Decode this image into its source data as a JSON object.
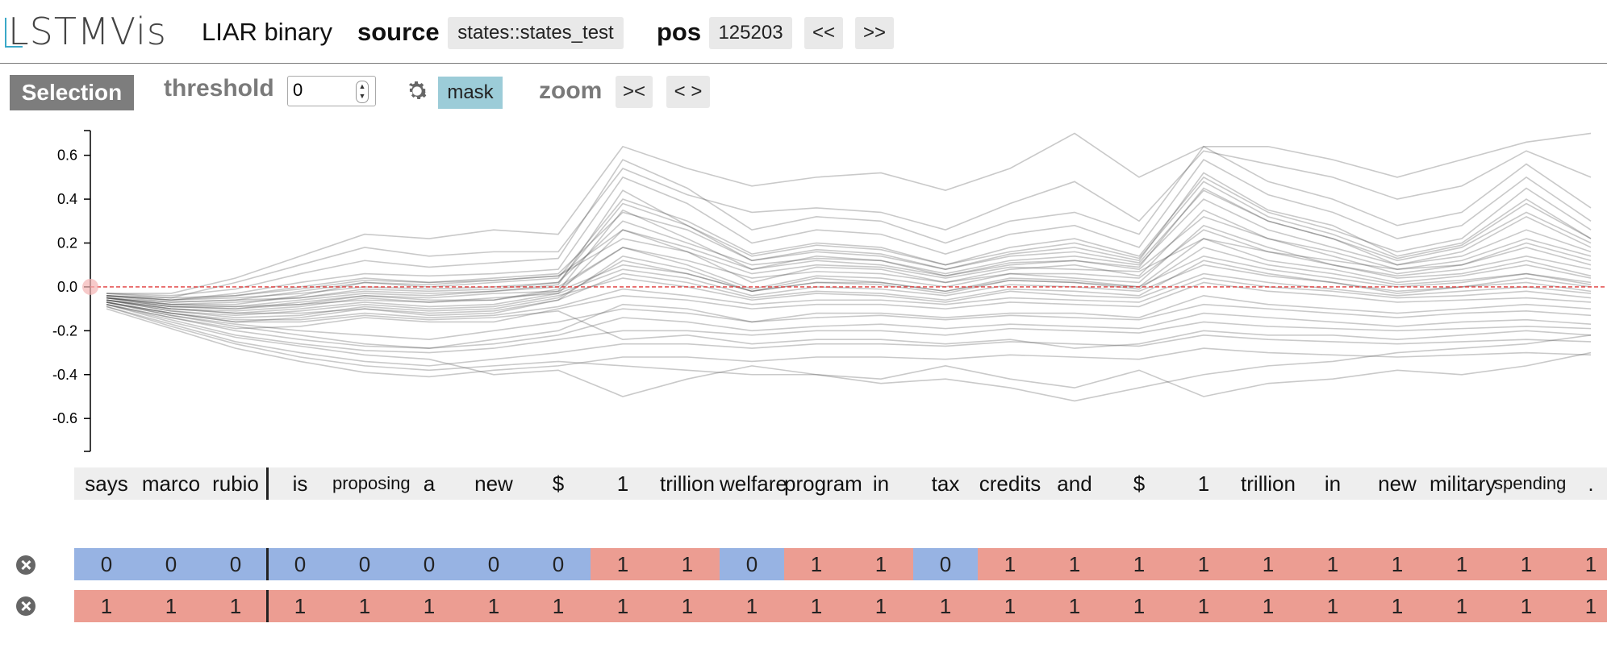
{
  "header": {
    "logo": "LSTMVis",
    "title": "LIAR binary",
    "source_label": "source",
    "source_value": "states::states_test",
    "pos_label": "pos",
    "pos_value": "125203",
    "prev_label": "<<",
    "next_label": ">>"
  },
  "toolbar": {
    "selection_label": "Selection",
    "threshold_label": "threshold",
    "threshold_value": "0",
    "mask_label": "mask",
    "zoom_label": "zoom",
    "zoom_in_label": "><",
    "zoom_out_label": "< >",
    "settings_icon": "gear-icon"
  },
  "chart_data": {
    "type": "line",
    "ylim": [
      -0.75,
      0.72
    ],
    "yticks": [
      "0.6",
      "0.4",
      "0.2",
      "0.0",
      "-0.2",
      "-0.4",
      "-0.6"
    ],
    "threshold": 0.0,
    "x": [
      "says",
      "marco",
      "rubio",
      "is",
      "proposing",
      "a",
      "new",
      "$",
      "1",
      "trillion",
      "welfare",
      "program",
      "in",
      "tax",
      "credits",
      "and",
      "$",
      "1",
      "trillion",
      "in",
      "new",
      "military",
      "spending",
      "."
    ],
    "series": [
      {
        "values": [
          -0.05,
          -0.08,
          -0.09,
          -0.08,
          -0.04,
          -0.06,
          -0.06,
          -0.01,
          0.18,
          0.1,
          -0.01,
          0.05,
          0.04,
          0.0,
          0.06,
          0.04,
          0.02,
          0.28,
          0.18,
          0.1,
          0.04,
          0.06,
          0.12,
          0.05
        ]
      },
      {
        "values": [
          -0.06,
          -0.1,
          -0.12,
          -0.1,
          -0.07,
          -0.09,
          -0.08,
          -0.03,
          0.26,
          0.16,
          0.02,
          0.09,
          0.08,
          0.02,
          0.08,
          0.1,
          0.05,
          0.35,
          0.22,
          0.14,
          0.06,
          0.1,
          0.18,
          0.1
        ]
      },
      {
        "values": [
          -0.04,
          -0.07,
          -0.06,
          -0.05,
          -0.02,
          -0.03,
          -0.02,
          0.01,
          0.44,
          0.28,
          0.12,
          0.17,
          0.15,
          0.08,
          0.15,
          0.18,
          0.12,
          0.52,
          0.35,
          0.28,
          0.14,
          0.2,
          0.4,
          0.22
        ]
      },
      {
        "values": [
          -0.07,
          -0.12,
          -0.16,
          -0.14,
          -0.1,
          -0.13,
          -0.12,
          -0.06,
          0.06,
          0.02,
          -0.05,
          -0.02,
          -0.03,
          -0.06,
          -0.01,
          -0.02,
          -0.04,
          0.12,
          0.06,
          0.02,
          -0.03,
          0.0,
          0.02,
          -0.02
        ]
      },
      {
        "values": [
          -0.05,
          -0.09,
          -0.1,
          -0.07,
          -0.04,
          -0.05,
          -0.03,
          -0.02,
          0.35,
          0.22,
          0.08,
          0.14,
          0.12,
          0.05,
          0.11,
          0.12,
          0.09,
          0.45,
          0.3,
          0.22,
          0.1,
          0.16,
          0.32,
          0.18
        ]
      },
      {
        "values": [
          -0.08,
          -0.14,
          -0.19,
          -0.18,
          -0.14,
          -0.16,
          -0.16,
          -0.1,
          -0.04,
          -0.06,
          -0.1,
          -0.08,
          -0.08,
          -0.1,
          -0.07,
          -0.08,
          -0.09,
          0.02,
          -0.02,
          -0.04,
          -0.07,
          -0.06,
          -0.05,
          -0.07
        ]
      },
      {
        "values": [
          -0.03,
          -0.05,
          -0.04,
          0.0,
          0.04,
          0.02,
          0.03,
          0.05,
          0.22,
          0.16,
          0.06,
          0.1,
          0.09,
          0.04,
          0.09,
          0.08,
          0.07,
          0.22,
          0.16,
          0.12,
          0.08,
          0.1,
          0.2,
          0.12
        ]
      },
      {
        "values": [
          -0.06,
          -0.11,
          -0.14,
          -0.13,
          -0.09,
          -0.11,
          -0.1,
          -0.05,
          0.12,
          0.06,
          -0.02,
          0.02,
          0.01,
          -0.03,
          0.03,
          0.02,
          -0.01,
          0.18,
          0.1,
          0.06,
          0.01,
          0.03,
          0.06,
          0.01
        ]
      },
      {
        "values": [
          -0.07,
          -0.13,
          -0.17,
          -0.2,
          -0.22,
          -0.24,
          -0.2,
          -0.16,
          -0.1,
          -0.12,
          -0.16,
          -0.14,
          -0.13,
          -0.15,
          -0.13,
          -0.14,
          -0.15,
          -0.08,
          -0.1,
          -0.12,
          -0.14,
          -0.12,
          -0.11,
          -0.13
        ]
      },
      {
        "values": [
          -0.04,
          -0.06,
          -0.05,
          -0.03,
          0.0,
          -0.01,
          0.0,
          0.02,
          0.3,
          0.2,
          0.1,
          0.13,
          0.12,
          0.06,
          0.12,
          0.14,
          0.1,
          0.4,
          0.26,
          0.18,
          0.1,
          0.14,
          0.26,
          0.16
        ]
      },
      {
        "values": [
          -0.08,
          -0.15,
          -0.22,
          -0.26,
          -0.29,
          -0.3,
          -0.28,
          -0.24,
          -0.2,
          -0.2,
          -0.22,
          -0.2,
          -0.2,
          -0.22,
          -0.19,
          -0.2,
          -0.21,
          -0.16,
          -0.18,
          -0.19,
          -0.2,
          -0.19,
          -0.18,
          -0.19
        ]
      },
      {
        "values": [
          -0.05,
          -0.08,
          -0.08,
          -0.04,
          0.02,
          0.0,
          0.02,
          0.04,
          0.4,
          0.3,
          0.15,
          0.2,
          0.18,
          0.1,
          0.18,
          0.22,
          0.14,
          0.5,
          0.34,
          0.26,
          0.16,
          0.22,
          0.45,
          0.26
        ]
      },
      {
        "values": [
          -0.06,
          -0.1,
          -0.11,
          -0.09,
          -0.05,
          -0.07,
          -0.05,
          -0.03,
          0.08,
          0.04,
          -0.04,
          0.0,
          -0.01,
          -0.04,
          0.01,
          0.0,
          -0.02,
          0.1,
          0.05,
          0.02,
          -0.02,
          0.0,
          0.04,
          0.0
        ]
      },
      {
        "values": [
          -0.09,
          -0.17,
          -0.25,
          -0.3,
          -0.34,
          -0.36,
          -0.33,
          -0.3,
          -0.26,
          -0.26,
          -0.28,
          -0.26,
          -0.26,
          -0.27,
          -0.25,
          -0.26,
          -0.27,
          -0.22,
          -0.24,
          -0.25,
          -0.26,
          -0.25,
          -0.24,
          -0.25
        ]
      },
      {
        "values": [
          -0.04,
          -0.06,
          -0.03,
          0.02,
          0.06,
          0.05,
          0.06,
          0.08,
          0.5,
          0.38,
          0.2,
          0.26,
          0.24,
          0.15,
          0.24,
          0.28,
          0.18,
          0.58,
          0.42,
          0.34,
          0.22,
          0.28,
          0.5,
          0.3
        ]
      },
      {
        "values": [
          -0.07,
          -0.12,
          -0.15,
          -0.15,
          -0.12,
          -0.14,
          -0.13,
          -0.09,
          -0.01,
          -0.04,
          -0.08,
          -0.06,
          -0.06,
          -0.08,
          -0.05,
          -0.06,
          -0.07,
          0.04,
          0.0,
          -0.02,
          -0.05,
          -0.04,
          -0.02,
          -0.05
        ]
      },
      {
        "values": [
          -0.03,
          -0.04,
          -0.01,
          0.06,
          0.12,
          0.09,
          0.11,
          0.13,
          0.58,
          0.45,
          0.26,
          0.32,
          0.3,
          0.2,
          0.3,
          0.34,
          0.24,
          0.64,
          0.48,
          0.4,
          0.28,
          0.34,
          0.56,
          0.36
        ]
      },
      {
        "values": [
          -0.1,
          -0.19,
          -0.28,
          -0.34,
          -0.39,
          -0.41,
          -0.38,
          -0.36,
          -0.32,
          -0.32,
          -0.34,
          -0.32,
          -0.32,
          -0.33,
          -0.31,
          -0.32,
          -0.33,
          -0.28,
          -0.3,
          -0.31,
          -0.32,
          -0.31,
          -0.3,
          -0.31
        ]
      },
      {
        "values": [
          -0.05,
          -0.09,
          -0.09,
          -0.06,
          -0.03,
          -0.04,
          -0.02,
          0.0,
          0.18,
          0.12,
          0.04,
          0.07,
          0.06,
          0.02,
          0.06,
          0.06,
          0.04,
          0.26,
          0.16,
          0.1,
          0.05,
          0.08,
          0.14,
          0.08
        ]
      },
      {
        "values": [
          -0.08,
          -0.16,
          -0.23,
          -0.27,
          -0.31,
          -0.33,
          -0.4,
          -0.38,
          -0.5,
          -0.42,
          -0.36,
          -0.4,
          -0.42,
          -0.36,
          -0.42,
          -0.46,
          -0.38,
          -0.5,
          -0.44,
          -0.42,
          -0.38,
          -0.4,
          -0.36,
          -0.3
        ]
      },
      {
        "values": [
          -0.06,
          -0.11,
          -0.13,
          -0.11,
          -0.08,
          -0.1,
          -0.09,
          -0.04,
          0.04,
          0.0,
          -0.06,
          -0.03,
          -0.04,
          -0.07,
          -0.02,
          -0.04,
          -0.05,
          0.06,
          0.02,
          -0.01,
          -0.04,
          -0.02,
          0.0,
          -0.03
        ]
      },
      {
        "values": [
          -0.04,
          -0.05,
          0.02,
          0.1,
          0.18,
          0.14,
          0.16,
          0.16,
          0.54,
          0.42,
          0.34,
          0.36,
          0.34,
          0.26,
          0.38,
          0.48,
          0.3,
          0.62,
          0.56,
          0.5,
          0.4,
          0.46,
          0.62,
          0.5
        ]
      },
      {
        "values": [
          -0.07,
          -0.13,
          -0.18,
          -0.22,
          -0.26,
          -0.28,
          -0.26,
          -0.22,
          -0.14,
          -0.16,
          -0.2,
          -0.18,
          -0.17,
          -0.19,
          -0.17,
          -0.18,
          -0.19,
          -0.12,
          -0.14,
          -0.16,
          -0.18,
          -0.16,
          -0.15,
          -0.17
        ]
      },
      {
        "values": [
          -0.05,
          -0.07,
          -0.06,
          -0.02,
          0.02,
          0.01,
          0.03,
          0.05,
          0.26,
          0.18,
          0.08,
          0.12,
          0.1,
          0.05,
          0.1,
          0.12,
          0.08,
          0.32,
          0.22,
          0.16,
          0.08,
          0.12,
          0.22,
          0.14
        ]
      },
      {
        "values": [
          -0.09,
          -0.18,
          -0.26,
          -0.32,
          -0.36,
          -0.38,
          -0.36,
          -0.34,
          -0.36,
          -0.38,
          -0.4,
          -0.4,
          -0.44,
          -0.42,
          -0.46,
          -0.52,
          -0.46,
          -0.4,
          -0.36,
          -0.34,
          -0.3,
          -0.28,
          -0.26,
          -0.22
        ]
      },
      {
        "values": [
          -0.06,
          -0.1,
          -0.12,
          -0.12,
          -0.1,
          -0.12,
          -0.11,
          -0.06,
          0.14,
          0.08,
          -0.02,
          0.04,
          0.02,
          -0.02,
          0.04,
          0.03,
          0.0,
          0.22,
          0.12,
          0.08,
          0.02,
          0.05,
          0.1,
          0.04
        ]
      },
      {
        "values": [
          -0.04,
          -0.06,
          -0.04,
          -0.01,
          0.03,
          0.02,
          0.04,
          0.06,
          0.34,
          0.26,
          0.12,
          0.16,
          0.14,
          0.08,
          0.14,
          0.16,
          0.11,
          0.44,
          0.3,
          0.22,
          0.12,
          0.18,
          0.34,
          0.2
        ]
      },
      {
        "values": [
          -0.08,
          -0.14,
          -0.2,
          -0.24,
          -0.27,
          -0.28,
          -0.24,
          -0.2,
          -0.08,
          -0.1,
          -0.16,
          -0.12,
          -0.12,
          -0.14,
          -0.12,
          -0.12,
          -0.14,
          -0.04,
          -0.08,
          -0.1,
          -0.12,
          -0.1,
          -0.08,
          -0.1
        ]
      },
      {
        "values": [
          -0.05,
          -0.08,
          -0.07,
          -0.05,
          -0.01,
          -0.02,
          -0.01,
          0.02,
          0.38,
          0.28,
          0.14,
          0.19,
          0.17,
          0.1,
          0.16,
          0.2,
          0.13,
          0.48,
          0.32,
          0.24,
          0.13,
          0.19,
          0.38,
          0.22
        ]
      },
      {
        "values": [
          -0.07,
          -0.12,
          -0.16,
          -0.16,
          -0.13,
          -0.15,
          -0.14,
          -0.11,
          -0.24,
          -0.22,
          -0.26,
          -0.24,
          -0.24,
          -0.26,
          -0.24,
          -0.28,
          -0.26,
          -0.2,
          -0.22,
          -0.22,
          -0.24,
          -0.22,
          -0.2,
          -0.22
        ]
      },
      {
        "values": [
          -0.03,
          -0.03,
          0.04,
          0.14,
          0.24,
          0.22,
          0.26,
          0.24,
          0.64,
          0.54,
          0.46,
          0.5,
          0.52,
          0.44,
          0.54,
          0.7,
          0.5,
          0.64,
          0.64,
          0.58,
          0.5,
          0.58,
          0.66,
          0.7
        ]
      },
      {
        "values": [
          -0.06,
          -0.09,
          -0.1,
          -0.08,
          -0.06,
          -0.07,
          -0.06,
          -0.02,
          0.1,
          0.06,
          -0.02,
          0.02,
          0.02,
          -0.02,
          0.03,
          0.02,
          0.0,
          0.14,
          0.08,
          0.04,
          0.0,
          0.02,
          0.06,
          0.02
        ]
      }
    ]
  },
  "tokens": [
    {
      "text": "says"
    },
    {
      "text": "marco"
    },
    {
      "text": "rubio"
    },
    {
      "text": "is"
    },
    {
      "text": "proposing",
      "small": true
    },
    {
      "text": "a"
    },
    {
      "text": "new"
    },
    {
      "text": "$"
    },
    {
      "text": "1"
    },
    {
      "text": "trillion"
    },
    {
      "text": "welfare"
    },
    {
      "text": "program"
    },
    {
      "text": "in"
    },
    {
      "text": "tax"
    },
    {
      "text": "credits"
    },
    {
      "text": "and"
    },
    {
      "text": "$"
    },
    {
      "text": "1"
    },
    {
      "text": "trillion"
    },
    {
      "text": "in"
    },
    {
      "text": "new"
    },
    {
      "text": "military"
    },
    {
      "text": "spending",
      "small": true
    },
    {
      "text": "."
    }
  ],
  "meta_rows": [
    {
      "values": [
        "0",
        "0",
        "0",
        "0",
        "0",
        "0",
        "0",
        "0",
        "1",
        "1",
        "0",
        "1",
        "1",
        "0",
        "1",
        "1",
        "1",
        "1",
        "1",
        "1",
        "1",
        "1",
        "1",
        "1"
      ]
    },
    {
      "values": [
        "1",
        "1",
        "1",
        "1",
        "1",
        "1",
        "1",
        "1",
        "1",
        "1",
        "1",
        "1",
        "1",
        "1",
        "1",
        "1",
        "1",
        "1",
        "1",
        "1",
        "1",
        "1",
        "1",
        "1"
      ]
    }
  ],
  "colors": {
    "zero": "#97b3e3",
    "one": "#ec9d92",
    "mask_active": "#9cccd8",
    "threshold_line": "#e03a3a",
    "accent": "#3aa8c8"
  }
}
